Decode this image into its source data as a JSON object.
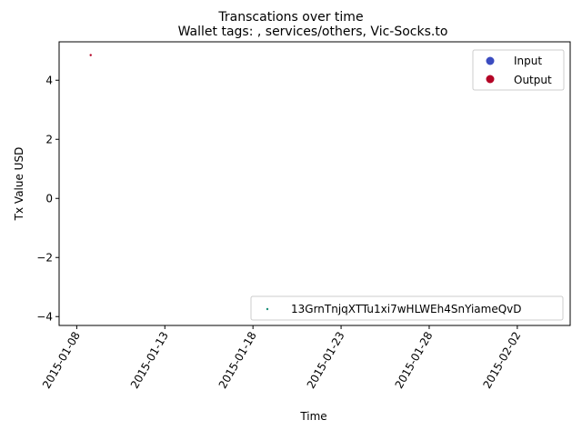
{
  "chart_data": {
    "type": "scatter",
    "suptitle": "Transcations over time",
    "title": "Wallet tags: , services/others, Vic-Socks.to",
    "xlabel": "Time",
    "ylabel": "Tx Value USD",
    "x_range": [
      "2015-01-07",
      "2015-02-05"
    ],
    "ylim": [
      -4.3,
      5.3
    ],
    "x_ticks": [
      "2015-01-08",
      "2015-01-13",
      "2015-01-18",
      "2015-01-23",
      "2015-01-28",
      "2015-02-02"
    ],
    "y_ticks": [
      4,
      2,
      0,
      -2,
      -4
    ],
    "grid": false,
    "legend_types": {
      "placement": "top-right",
      "entries": [
        {
          "label": "Input",
          "color": "#3b4cc0"
        },
        {
          "label": "Output",
          "color": "#b40426"
        }
      ]
    },
    "legend_wallets": {
      "placement": "bottom-right",
      "entries": [
        {
          "label": "13GrnTnjqXTTu1xi7wHLWEh4SnYiameQvD",
          "color": "#1a8f78"
        }
      ]
    },
    "points": [
      {
        "x": "2015-01-08T19:00",
        "y": 4.85,
        "type": "Output",
        "color": "#b40426"
      }
    ]
  }
}
